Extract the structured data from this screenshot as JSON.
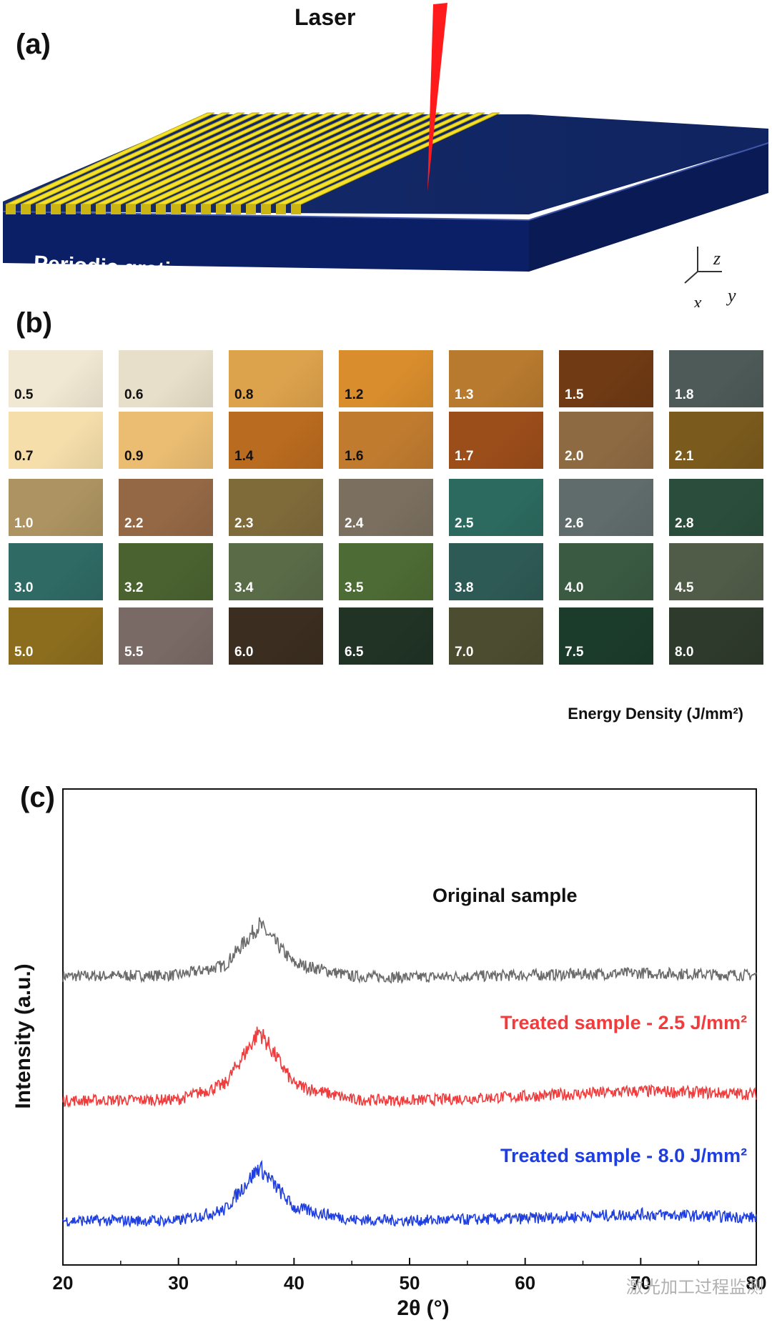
{
  "panel_a": {
    "label": "(a)",
    "laser_label": "Laser",
    "grating_label": "Periodic grating",
    "axes": {
      "z": "z",
      "x": "x",
      "y": "y"
    }
  },
  "panel_b": {
    "label": "(b)",
    "caption": "Energy Density  (J/mm²)",
    "rows": [
      [
        {
          "v": "0.5",
          "c": "#f1e8d3",
          "t": "#111"
        },
        {
          "v": "0.6",
          "c": "#e7dfc9",
          "t": "#111"
        },
        {
          "v": "0.8",
          "c": "#dda24c",
          "t": "#111"
        },
        {
          "v": "1.2",
          "c": "#d98d2d",
          "t": "#111"
        },
        {
          "v": "1.3",
          "c": "#b87a2e",
          "t": "#ffffff"
        },
        {
          "v": "1.5",
          "c": "#6f3a14",
          "t": "#ffffff"
        },
        {
          "v": "1.8",
          "c": "#4d5a58",
          "t": "#ffffff"
        }
      ],
      [
        {
          "v": "0.7",
          "c": "#f5deaa",
          "t": "#111"
        },
        {
          "v": "0.9",
          "c": "#eabd72",
          "t": "#111"
        },
        {
          "v": "1.4",
          "c": "#b96b1f",
          "t": "#111"
        },
        {
          "v": "1.6",
          "c": "#c07b2f",
          "t": "#111"
        },
        {
          "v": "1.7",
          "c": "#9b4d1a",
          "t": "#ffffff"
        },
        {
          "v": "2.0",
          "c": "#8e6a43",
          "t": "#ffffff"
        },
        {
          "v": "2.1",
          "c": "#7a5a1d",
          "t": "#ffffff"
        }
      ],
      [
        {
          "v": "1.0",
          "c": "#ad9361",
          "t": "#ffffff"
        },
        {
          "v": "2.2",
          "c": "#946845",
          "t": "#ffffff"
        },
        {
          "v": "2.3",
          "c": "#7f6a3a",
          "t": "#ffffff"
        },
        {
          "v": "2.4",
          "c": "#7b705f",
          "t": "#ffffff"
        },
        {
          "v": "2.5",
          "c": "#2c6a5f",
          "t": "#ffffff"
        },
        {
          "v": "2.6",
          "c": "#606c6c",
          "t": "#ffffff"
        },
        {
          "v": "2.8",
          "c": "#2b4e3c",
          "t": "#ffffff"
        }
      ],
      [
        {
          "v": "3.0",
          "c": "#2f6a65",
          "t": "#ffffff"
        },
        {
          "v": "3.2",
          "c": "#4a6230",
          "t": "#ffffff"
        },
        {
          "v": "3.4",
          "c": "#5a6b48",
          "t": "#ffffff"
        },
        {
          "v": "3.5",
          "c": "#4d6b34",
          "t": "#ffffff"
        },
        {
          "v": "3.8",
          "c": "#2e5a55",
          "t": "#ffffff"
        },
        {
          "v": "4.0",
          "c": "#3a5a42",
          "t": "#ffffff"
        },
        {
          "v": "4.5",
          "c": "#505c48",
          "t": "#ffffff"
        }
      ],
      [
        {
          "v": "5.0",
          "c": "#8c6d1e",
          "t": "#ffffff"
        },
        {
          "v": "5.5",
          "c": "#7a6a66",
          "t": "#ffffff"
        },
        {
          "v": "6.0",
          "c": "#3b2e20",
          "t": "#ffffff"
        },
        {
          "v": "6.5",
          "c": "#203325",
          "t": "#ffffff"
        },
        {
          "v": "7.0",
          "c": "#4c4d30",
          "t": "#ffffff"
        },
        {
          "v": "7.5",
          "c": "#1c3c2b",
          "t": "#ffffff"
        },
        {
          "v": "8.0",
          "c": "#2e3a2c",
          "t": "#ffffff"
        }
      ]
    ]
  },
  "panel_c": {
    "label": "(c)",
    "watermark": "激光加工过程监测",
    "chart_data": {
      "type": "line",
      "title": "",
      "xlabel": "2θ (°)",
      "ylabel": "Intensity (a.u.)",
      "xlim": [
        20,
        80
      ],
      "xticks": [
        "20",
        "30",
        "40",
        "50",
        "60",
        "70",
        "80"
      ],
      "grid": false,
      "series": [
        {
          "name": "Original sample",
          "color": "#6a6a6a",
          "peak_x": 37.0,
          "x": [
            20,
            30,
            34,
            37,
            40,
            45,
            50,
            60,
            70,
            80
          ],
          "y": [
            0.3,
            0.31,
            0.4,
            0.78,
            0.42,
            0.3,
            0.29,
            0.31,
            0.33,
            0.31
          ]
        },
        {
          "name": "Treated sample - 2.5 J/mm²",
          "color": "#f03c3c",
          "peak_x": 36.8,
          "x": [
            20,
            30,
            34,
            37,
            40,
            45,
            50,
            60,
            70,
            80
          ],
          "y": [
            0.3,
            0.31,
            0.45,
            0.95,
            0.45,
            0.31,
            0.3,
            0.34,
            0.39,
            0.36
          ]
        },
        {
          "name": "Treated sample - 8.0 J/mm²",
          "color": "#1f3ee0",
          "peak_x": 37.5,
          "x": [
            20,
            30,
            34,
            37,
            40,
            45,
            50,
            60,
            70,
            80
          ],
          "y": [
            0.3,
            0.3,
            0.4,
            0.8,
            0.42,
            0.31,
            0.3,
            0.32,
            0.36,
            0.33
          ]
        }
      ]
    }
  }
}
